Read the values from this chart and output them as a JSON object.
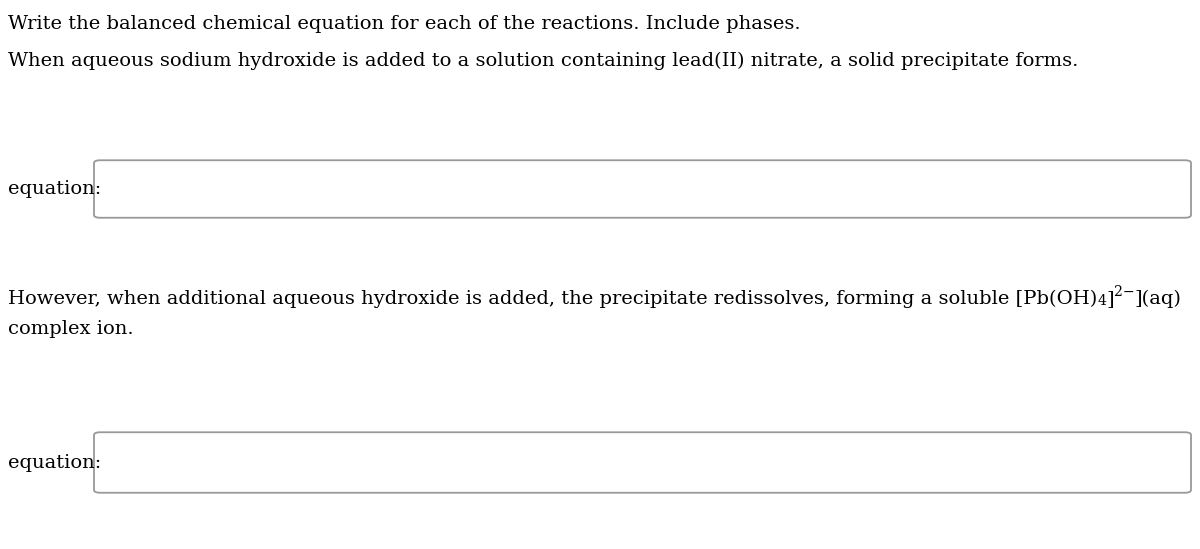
{
  "background_color": "#ffffff",
  "line1": "Write the balanced chemical equation for each of the reactions. Include phases.",
  "line2": "When aqueous sodium hydroxide is added to a solution containing lead(II) nitrate, a solid precipitate forms.",
  "equation_label": "equation:",
  "line3_part1": "However, when additional aqueous hydroxide is added, the precipitate redissolves, forming a soluble [Pb(OH)",
  "line3_sub": "4",
  "line3_sup": "2−",
  "line3_end": "](aq)",
  "line4": "complex ion.",
  "equation_label2": "equation:",
  "font_size": 14,
  "label_font_size": 14,
  "box_edge_color": "#999999",
  "text_color": "#000000",
  "font_family": "DejaVu Serif"
}
